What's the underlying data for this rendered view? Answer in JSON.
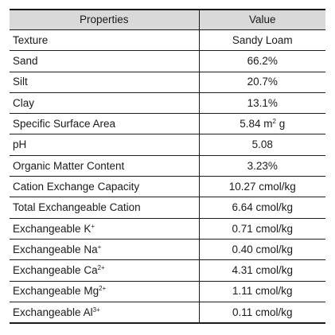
{
  "table": {
    "header": {
      "col1": "Properties",
      "col2": "Value"
    },
    "rows": [
      {
        "label": "Texture",
        "value": "Sandy Loam"
      },
      {
        "label": "Sand",
        "value": "66.2%"
      },
      {
        "label": "Silt",
        "value": "20.7%"
      },
      {
        "label": "Clay",
        "value": "13.1%"
      },
      {
        "label": "Specific Surface Area",
        "value": "5.84 m",
        "value_sup": "2",
        "value_suffix": " g"
      },
      {
        "label": "pH",
        "value": "5.08"
      },
      {
        "label": "Organic Matter Content",
        "value": "3.23%"
      },
      {
        "label": "Cation Exchange Capacity",
        "value": "10.27 cmol/kg"
      },
      {
        "label": "Total Exchangeable Cation",
        "value": "6.64 cmol/kg"
      },
      {
        "label": "Exchangeable K",
        "label_sup": "+",
        "value": "0.71 cmol/kg"
      },
      {
        "label": "Exchangeable Na",
        "label_sup": "+",
        "value": "0.40 cmol/kg"
      },
      {
        "label": "Exchangeable Ca",
        "label_sup": "2+",
        "value": "4.31 cmol/kg"
      },
      {
        "label": "Exchangeable Mg",
        "label_sup": "2+",
        "value": "1.11 cmol/kg"
      },
      {
        "label": "Exchangeable Al",
        "label_sup": "3+",
        "value": "0.11 cmol/kg"
      }
    ]
  }
}
